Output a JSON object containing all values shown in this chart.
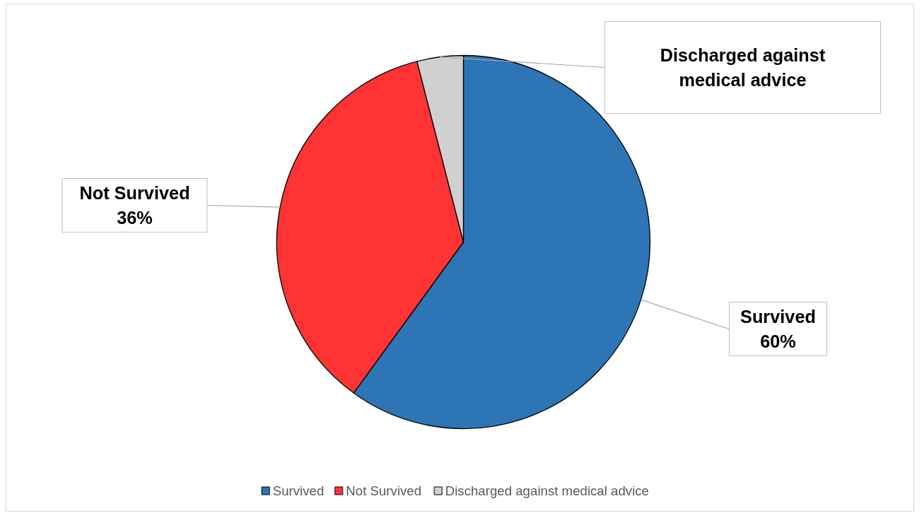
{
  "chart_data": {
    "type": "pie",
    "categories": [
      "Survived",
      "Not Survived",
      "Discharged against medical advice"
    ],
    "values": [
      60,
      36,
      4
    ],
    "value_labels": [
      "60%",
      "36%",
      null
    ],
    "colors": [
      "#2e75b6",
      "#ff3333",
      "#d0d0d0"
    ],
    "legend": "bottom"
  }
}
